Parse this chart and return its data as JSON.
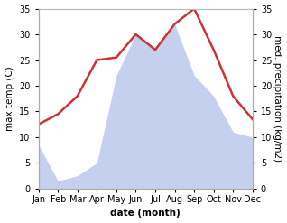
{
  "months": [
    "Jan",
    "Feb",
    "Mar",
    "Apr",
    "May",
    "Jun",
    "Jul",
    "Aug",
    "Sep",
    "Oct",
    "Nov",
    "Dec"
  ],
  "temperature": [
    12.5,
    14.5,
    18.0,
    25.0,
    25.5,
    30.0,
    27.0,
    32.0,
    35.0,
    27.0,
    18.0,
    13.5
  ],
  "precipitation": [
    8.5,
    1.5,
    2.5,
    5.0,
    22.0,
    30.0,
    27.0,
    32.0,
    22.0,
    18.0,
    11.0,
    10.0
  ],
  "temp_color": "#cc3333",
  "precip_color": "#c5d0ee",
  "background_color": "#ffffff",
  "ylabel_left": "max temp (C)",
  "ylabel_right": "med. precipitation (kg/m2)",
  "xlabel": "date (month)",
  "ylim": [
    0,
    35
  ],
  "label_fontsize": 7.5,
  "tick_fontsize": 7,
  "line_width": 1.8
}
